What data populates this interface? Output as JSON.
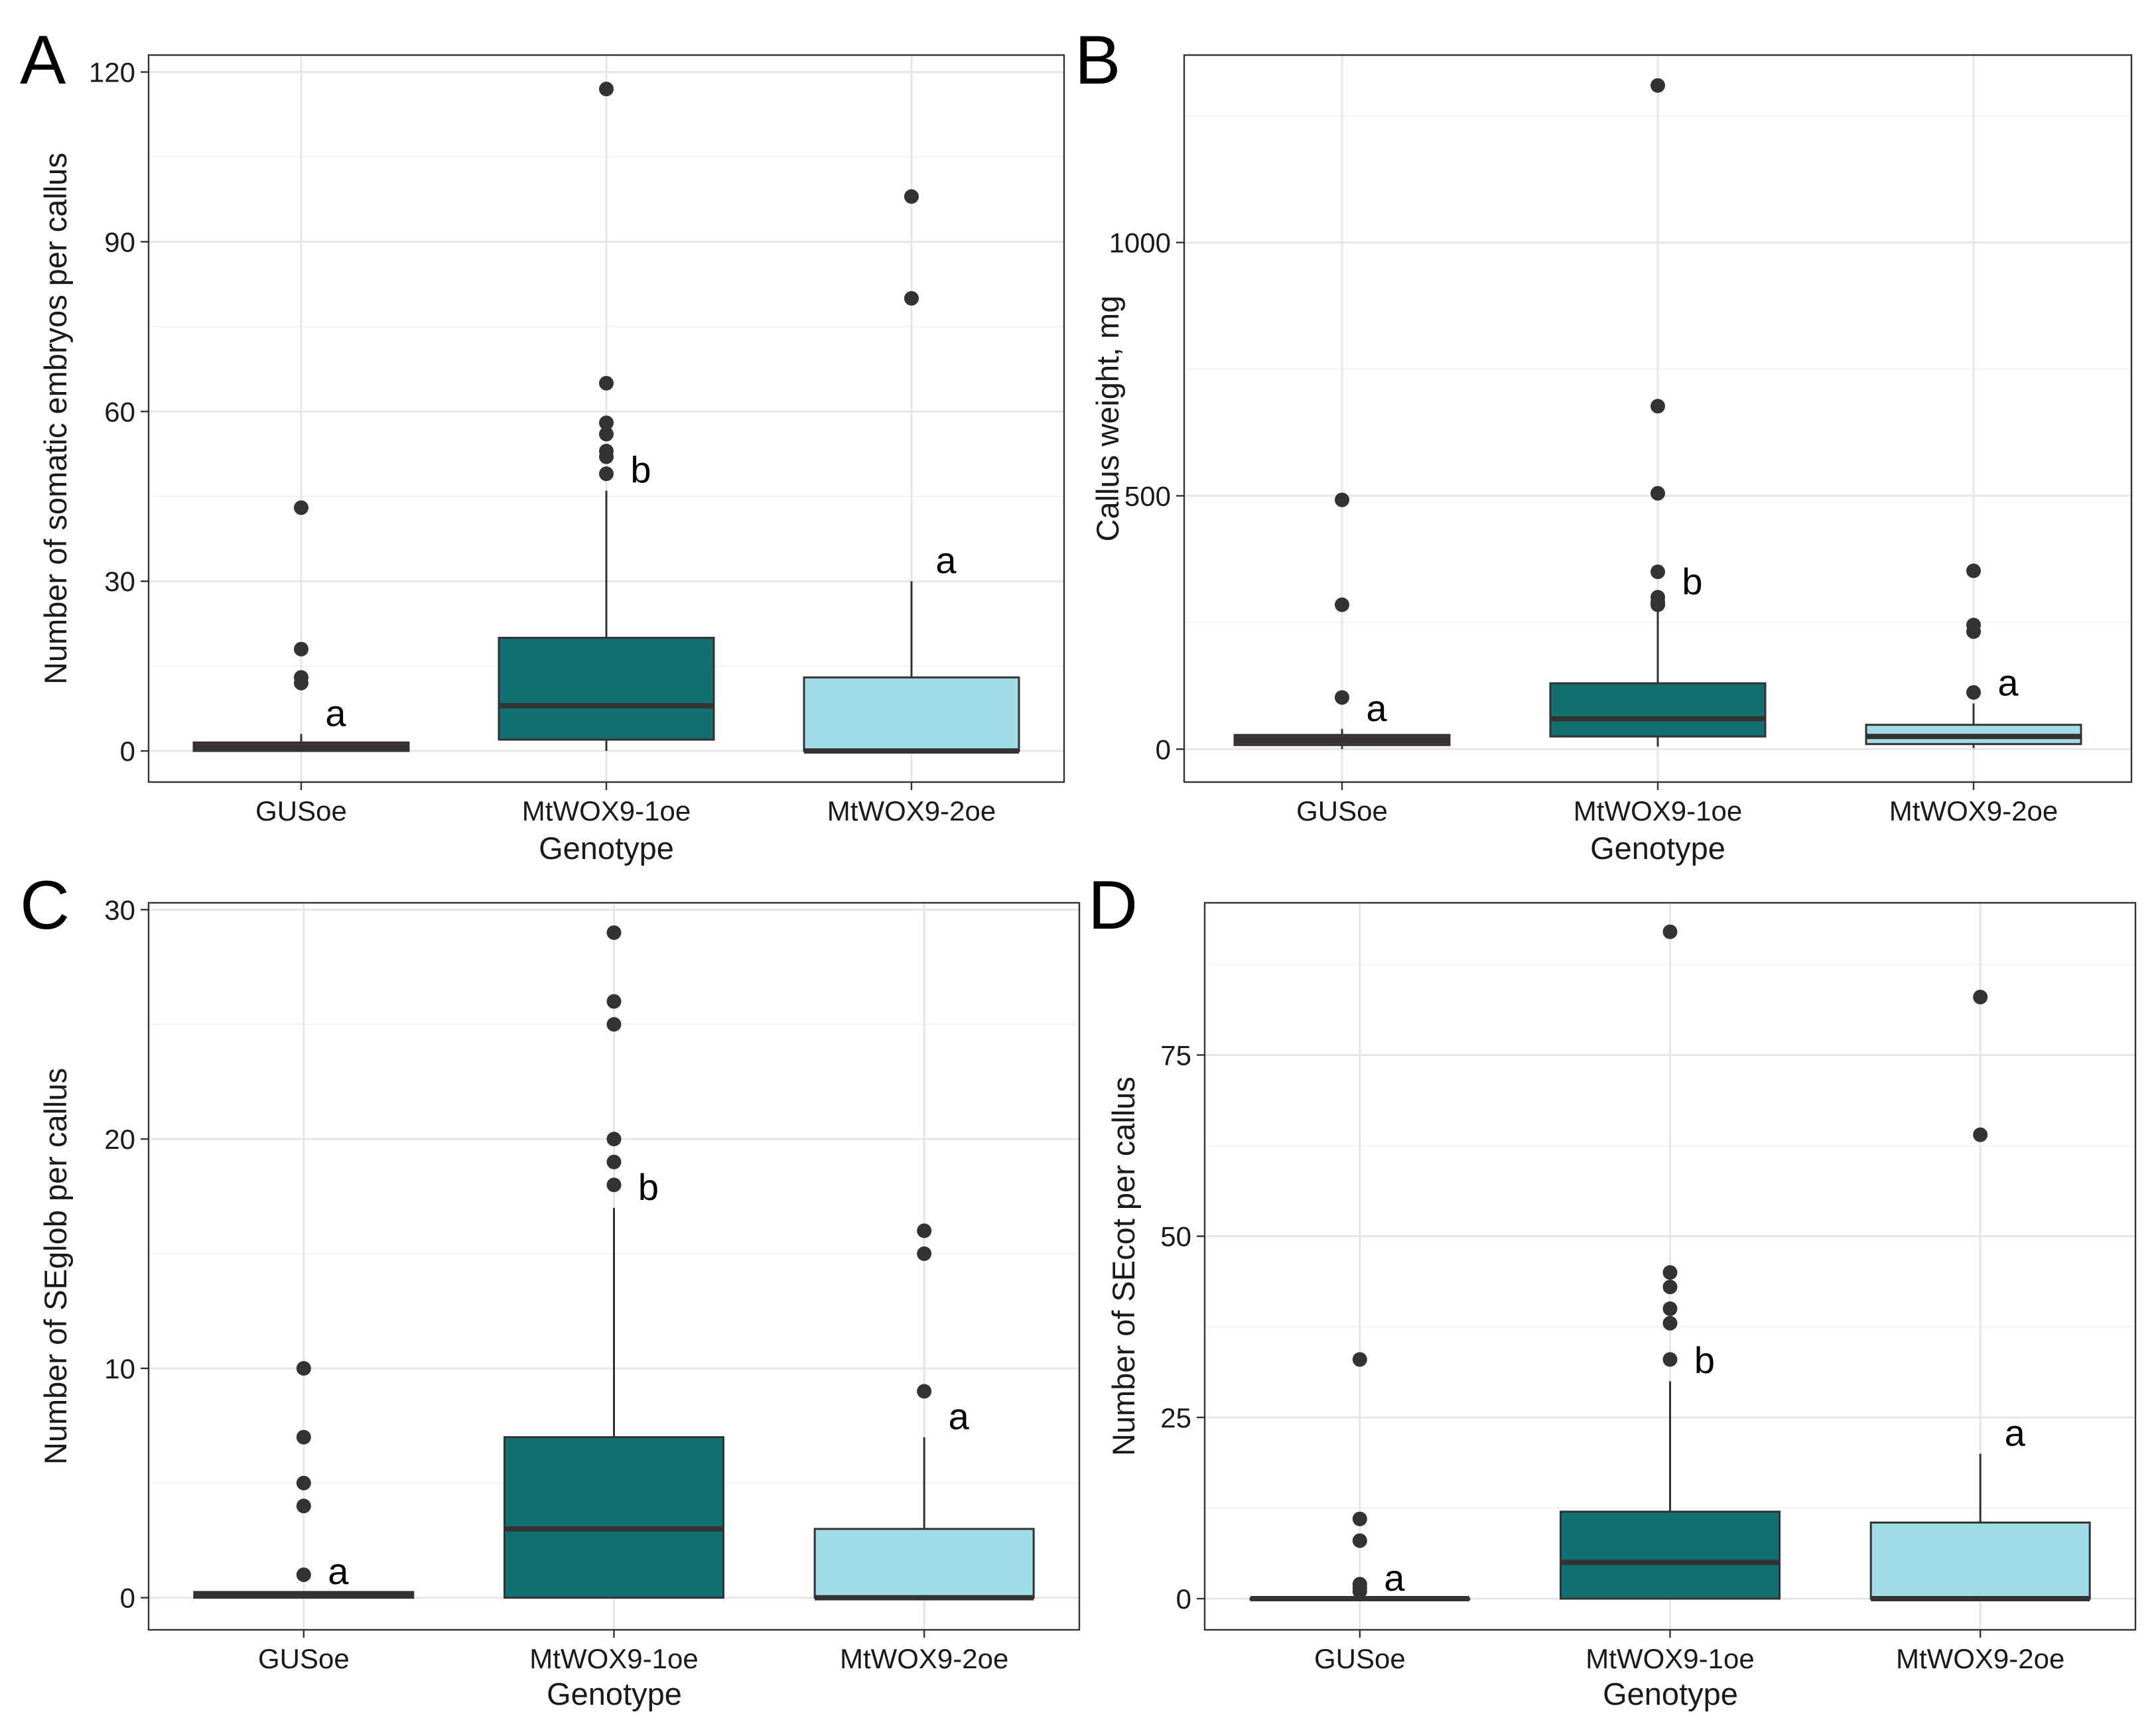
{
  "chart_data": [
    {
      "type": "box",
      "panel": "A",
      "xlabel": "Genotype",
      "ylabel": "Number of somatic embryos per callus",
      "ylim": [
        -5.5,
        123
      ],
      "yticks": [
        0,
        30,
        60,
        90,
        120
      ],
      "categories": [
        "GUSoe",
        "MtWOX9-1oe",
        "MtWOX9-2oe"
      ],
      "fills": [
        "#4a3238",
        "#127073",
        "#a1dde6"
      ],
      "boxes": [
        {
          "q1": 0,
          "median": 0.5,
          "q3": 1.5,
          "whisker_low": 0,
          "whisker_high": 3,
          "outliers": [
            43,
            18,
            13,
            12
          ],
          "letter": "a"
        },
        {
          "q1": 2,
          "median": 8,
          "q3": 20,
          "whisker_low": 0,
          "whisker_high": 46,
          "outliers": [
            117,
            65,
            58,
            56,
            53,
            52,
            49
          ],
          "letter": "b"
        },
        {
          "q1": 0,
          "median": 0,
          "q3": 13,
          "whisker_low": 0,
          "whisker_high": 30,
          "outliers": [
            98,
            80
          ],
          "letter": "a"
        }
      ],
      "ytick_labels": [
        "0",
        "30",
        "60",
        "90",
        "120"
      ]
    },
    {
      "type": "box",
      "panel": "B",
      "xlabel": "Genotype",
      "ylabel": "Callus weight, mg",
      "ylim": [
        -65,
        1370
      ],
      "yticks": [
        0,
        500,
        1000
      ],
      "categories": [
        "GUSoe",
        "MtWOX9-1oe",
        "MtWOX9-2oe"
      ],
      "fills": [
        "#4a3238",
        "#127073",
        "#a1dde6"
      ],
      "boxes": [
        {
          "q1": 8,
          "median": 18,
          "q3": 28,
          "whisker_low": 0,
          "whisker_high": 40,
          "outliers": [
            492,
            285,
            102
          ],
          "letter": "a"
        },
        {
          "q1": 25,
          "median": 60,
          "q3": 130,
          "whisker_low": 5,
          "whisker_high": 290,
          "outliers": [
            1310,
            677,
            505,
            350,
            300,
            290,
            285
          ],
          "letter": "b"
        },
        {
          "q1": 10,
          "median": 25,
          "q3": 48,
          "whisker_low": 2,
          "whisker_high": 90,
          "outliers": [
            352,
            245,
            232,
            112
          ],
          "letter": "a"
        }
      ],
      "ytick_labels": [
        "0",
        "500",
        "1000"
      ]
    },
    {
      "type": "box",
      "panel": "C",
      "xlabel": "Genotype",
      "ylabel": "Number of SEglob per callus",
      "ylim": [
        -1.4,
        30.3
      ],
      "yticks": [
        0,
        10,
        20,
        30
      ],
      "categories": [
        "GUSoe",
        "MtWOX9-1oe",
        "MtWOX9-2oe"
      ],
      "fills": [
        "#4a3238",
        "#127073",
        "#a1dde6"
      ],
      "boxes": [
        {
          "q1": 0,
          "median": 0.1,
          "q3": 0.25,
          "whisker_low": 0,
          "whisker_high": 0.25,
          "outliers": [
            10,
            7,
            5,
            4,
            1
          ],
          "letter": "a"
        },
        {
          "q1": 0,
          "median": 3,
          "q3": 7,
          "whisker_low": 0,
          "whisker_high": 17,
          "outliers": [
            29,
            26,
            25,
            20,
            19,
            18
          ],
          "letter": "b"
        },
        {
          "q1": 0,
          "median": 0,
          "q3": 3,
          "whisker_low": 0,
          "whisker_high": 7,
          "outliers": [
            16,
            15,
            9
          ],
          "letter": "a"
        }
      ],
      "ytick_labels": [
        "0",
        "10",
        "20",
        "30"
      ]
    },
    {
      "type": "box",
      "panel": "D",
      "xlabel": "Genotype",
      "ylabel": "Number of SEcot per callus",
      "ylim": [
        -4.3,
        96
      ],
      "yticks": [
        0,
        25,
        50,
        75
      ],
      "categories": [
        "GUSoe",
        "MtWOX9-1oe",
        "MtWOX9-2oe"
      ],
      "fills": [
        "#4a3238",
        "#127073",
        "#a1dde6"
      ],
      "boxes": [
        {
          "q1": 0,
          "median": 0,
          "q3": 0,
          "whisker_low": 0,
          "whisker_high": 0,
          "outliers": [
            33,
            11,
            8,
            2,
            1.5,
            1
          ],
          "letter": "a"
        },
        {
          "q1": 0,
          "median": 5,
          "q3": 12,
          "whisker_low": 0,
          "whisker_high": 30,
          "outliers": [
            92,
            45,
            43,
            40,
            38,
            33
          ],
          "letter": "b"
        },
        {
          "q1": 0,
          "median": 0,
          "q3": 10.5,
          "whisker_low": 0,
          "whisker_high": 20,
          "outliers": [
            83,
            64
          ],
          "letter": "a"
        }
      ],
      "ytick_labels": [
        "0",
        "25",
        "50",
        "75"
      ]
    }
  ]
}
